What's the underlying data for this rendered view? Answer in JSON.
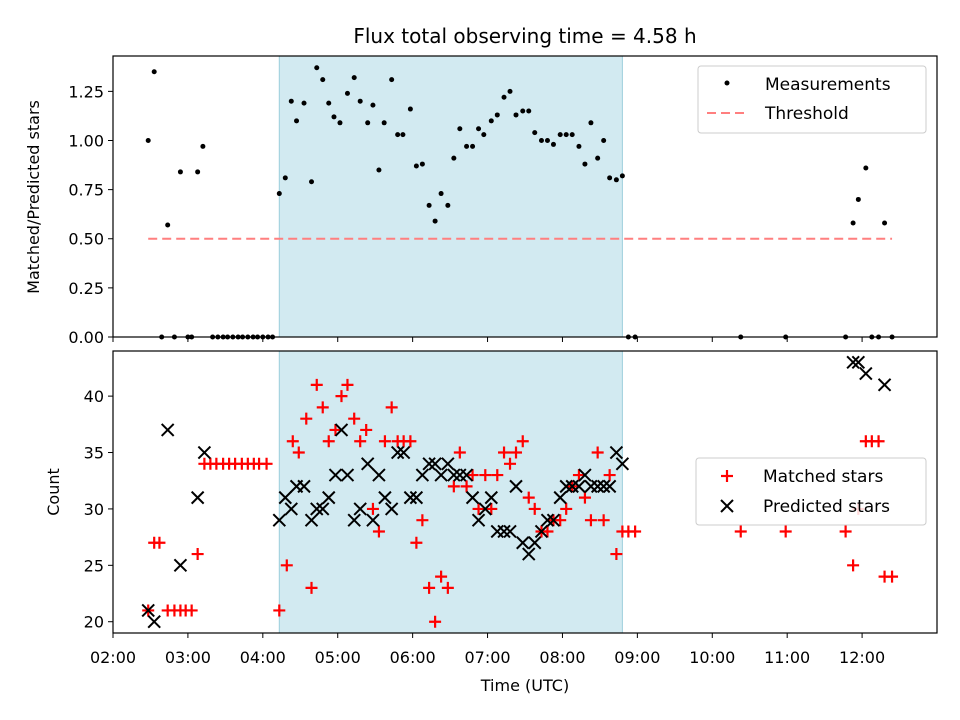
{
  "chart_data": {
    "type": "scatter",
    "title": "Flux total observing time = 4.58 h",
    "colors": {
      "measurements": "#000000",
      "threshold": "#ff7f7f",
      "matched": "#ff0000",
      "predicted": "#000000",
      "highlight": "#add8e6"
    },
    "x_axis": {
      "label": "Time (UTC)",
      "unit": "hours UTC",
      "range": [
        2.0,
        13.0
      ],
      "ticks": [
        2,
        3,
        4,
        5,
        6,
        7,
        8,
        9,
        10,
        11,
        12
      ],
      "tick_labels": [
        "02:00",
        "03:00",
        "04:00",
        "05:00",
        "06:00",
        "07:00",
        "08:00",
        "09:00",
        "10:00",
        "11:00",
        "12:00"
      ]
    },
    "highlight_span": [
      4.22,
      8.8
    ],
    "top": {
      "ylabel": "Matched/Predicted stars",
      "ylim": [
        0,
        1.43
      ],
      "yticks": [
        0,
        0.25,
        0.5,
        0.75,
        1.0,
        1.25
      ],
      "ytick_labels": [
        "0.00",
        "0.25",
        "0.50",
        "0.75",
        "1.00",
        "1.25"
      ],
      "legend": {
        "placement": "top-right",
        "entries": [
          "Measurements",
          "Threshold"
        ]
      },
      "threshold": {
        "value": 0.5,
        "x": [
          2.47,
          12.4
        ]
      },
      "measurements": {
        "x": [
          2.47,
          2.55,
          2.65,
          2.73,
          2.82,
          2.9,
          3.0,
          3.05,
          3.13,
          3.2,
          3.33,
          3.4,
          3.47,
          3.53,
          3.6,
          3.67,
          3.73,
          3.8,
          3.87,
          3.93,
          4.0,
          4.07,
          4.13,
          4.22,
          4.3,
          4.38,
          4.45,
          4.55,
          4.65,
          4.72,
          4.8,
          4.88,
          4.95,
          5.03,
          5.13,
          5.22,
          5.3,
          5.4,
          5.47,
          5.55,
          5.62,
          5.72,
          5.8,
          5.87,
          5.97,
          6.05,
          6.13,
          6.22,
          6.3,
          6.38,
          6.47,
          6.55,
          6.63,
          6.72,
          6.8,
          6.88,
          6.95,
          7.05,
          7.13,
          7.22,
          7.3,
          7.38,
          7.47,
          7.55,
          7.63,
          7.72,
          7.8,
          7.88,
          7.97,
          8.05,
          8.13,
          8.22,
          8.3,
          8.38,
          8.47,
          8.55,
          8.63,
          8.72,
          8.8,
          8.88,
          8.97,
          10.38,
          10.98,
          11.78,
          11.88,
          11.95,
          12.05,
          12.13,
          12.22,
          12.3,
          12.4
        ],
        "y": [
          1.0,
          1.35,
          0.0,
          0.57,
          0.0,
          0.84,
          0.0,
          0.0,
          0.84,
          0.97,
          0.0,
          0.0,
          0.0,
          0.0,
          0.0,
          0.0,
          0.0,
          0.0,
          0.0,
          0.0,
          0.0,
          0.0,
          0.0,
          0.73,
          0.81,
          1.2,
          1.1,
          1.19,
          0.79,
          1.37,
          1.31,
          1.19,
          1.12,
          1.09,
          1.24,
          1.32,
          1.2,
          1.09,
          1.18,
          0.85,
          1.09,
          1.31,
          1.03,
          1.03,
          1.16,
          0.87,
          0.88,
          0.67,
          0.59,
          0.73,
          0.67,
          0.91,
          1.06,
          0.97,
          0.97,
          1.06,
          1.03,
          1.1,
          1.13,
          1.22,
          1.25,
          1.13,
          1.15,
          1.15,
          1.04,
          1.0,
          1.0,
          0.98,
          1.03,
          1.03,
          1.03,
          0.97,
          0.88,
          1.09,
          0.91,
          1.0,
          0.81,
          0.8,
          0.82,
          0.0,
          0.0,
          0.0,
          0.0,
          0.0,
          0.58,
          0.7,
          0.86,
          0.0,
          0.0,
          0.58,
          0.0
        ]
      }
    },
    "bottom": {
      "ylabel": "Count",
      "ylim": [
        19,
        44
      ],
      "yticks": [
        20,
        25,
        30,
        35,
        40
      ],
      "ytick_labels": [
        "20",
        "25",
        "30",
        "35",
        "40"
      ],
      "legend": {
        "placement": "center-right",
        "entries": [
          "Matched stars",
          "Predicted stars"
        ]
      },
      "matched": {
        "x": [
          2.47,
          2.55,
          2.62,
          2.73,
          2.82,
          2.9,
          2.97,
          3.05,
          3.13,
          3.22,
          3.3,
          3.38,
          3.47,
          3.55,
          3.63,
          3.72,
          3.8,
          3.88,
          3.95,
          4.05,
          4.22,
          4.32,
          4.4,
          4.48,
          4.58,
          4.65,
          4.72,
          4.8,
          4.88,
          4.97,
          5.05,
          5.13,
          5.22,
          5.3,
          5.38,
          5.47,
          5.55,
          5.63,
          5.72,
          5.8,
          5.88,
          5.97,
          6.05,
          6.13,
          6.22,
          6.3,
          6.38,
          6.47,
          6.55,
          6.63,
          6.72,
          6.8,
          6.88,
          6.97,
          7.05,
          7.13,
          7.22,
          7.3,
          7.38,
          7.47,
          7.55,
          7.63,
          7.72,
          7.8,
          7.88,
          7.97,
          8.05,
          8.13,
          8.22,
          8.3,
          8.38,
          8.47,
          8.55,
          8.63,
          8.72,
          8.8,
          8.88,
          8.97,
          10.38,
          10.98,
          11.78,
          11.88,
          11.95,
          12.05,
          12.13,
          12.22,
          12.3,
          12.4
        ],
        "y": [
          21,
          27,
          27,
          21,
          21,
          21,
          21,
          21,
          26,
          34,
          34,
          34,
          34,
          34,
          34,
          34,
          34,
          34,
          34,
          34,
          21,
          25,
          36,
          35,
          38,
          23,
          41,
          39,
          36,
          37,
          40,
          41,
          38,
          36,
          37,
          30,
          28,
          36,
          39,
          36,
          36,
          36,
          27,
          29,
          23,
          20,
          24,
          23,
          32,
          35,
          32,
          33,
          30,
          33,
          30,
          33,
          35,
          34,
          35,
          36,
          31,
          30,
          28,
          28,
          29,
          29,
          30,
          32,
          33,
          31,
          29,
          35,
          29,
          33,
          26,
          28,
          28,
          28,
          28,
          28,
          28,
          25,
          30,
          36,
          36,
          36,
          24,
          24
        ]
      },
      "predicted": {
        "x": [
          2.47,
          2.55,
          2.73,
          2.9,
          3.13,
          3.22,
          4.22,
          4.3,
          4.38,
          4.45,
          4.55,
          4.65,
          4.72,
          4.8,
          4.88,
          4.97,
          5.05,
          5.13,
          5.22,
          5.3,
          5.4,
          5.47,
          5.55,
          5.63,
          5.72,
          5.8,
          5.88,
          5.97,
          6.05,
          6.13,
          6.22,
          6.3,
          6.38,
          6.47,
          6.55,
          6.63,
          6.72,
          6.8,
          6.88,
          6.97,
          7.05,
          7.13,
          7.22,
          7.3,
          7.38,
          7.47,
          7.55,
          7.63,
          7.72,
          7.8,
          7.88,
          7.97,
          8.05,
          8.13,
          8.22,
          8.3,
          8.38,
          8.47,
          8.55,
          8.63,
          8.72,
          8.8,
          11.88,
          11.95,
          12.05,
          12.3
        ],
        "y": [
          21,
          20,
          37,
          25,
          31,
          35,
          29,
          31,
          30,
          32,
          32,
          29,
          30,
          30,
          31,
          33,
          37,
          33,
          29,
          30,
          34,
          29,
          33,
          31,
          30,
          35,
          35,
          31,
          31,
          33,
          34,
          34,
          33,
          34,
          33,
          33,
          33,
          31,
          29,
          30,
          31,
          28,
          28,
          28,
          32,
          27,
          26,
          27,
          28,
          29,
          29,
          31,
          32,
          32,
          32,
          33,
          32,
          32,
          32,
          32,
          35,
          34,
          43,
          43,
          42,
          41
        ]
      }
    }
  }
}
